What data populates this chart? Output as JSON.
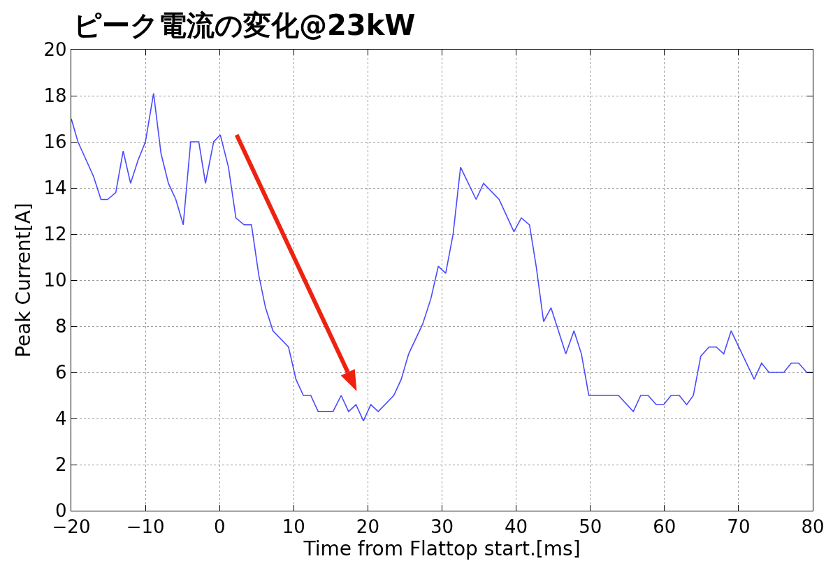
{
  "chart_data": {
    "type": "line",
    "title": "ピーク電流の変化@23kW",
    "xlabel": "Time from Flattop start.[ms]",
    "ylabel": "Peak Current[A]",
    "x": [
      -20.0,
      -19.1,
      -17.0,
      -16.0,
      -15.1,
      -14.0,
      -13.0,
      -12.0,
      -11.0,
      -10.0,
      -8.9,
      -7.9,
      -6.9,
      -5.9,
      -4.9,
      -3.9,
      -2.8,
      -1.9,
      -0.8,
      0.1,
      1.2,
      2.2,
      3.3,
      4.3,
      5.3,
      6.2,
      7.2,
      9.3,
      10.3,
      11.3,
      12.3,
      13.3,
      15.3,
      16.4,
      17.4,
      18.4,
      19.4,
      20.4,
      21.4,
      23.5,
      24.5,
      25.5,
      27.4,
      28.5,
      29.5,
      30.5,
      31.5,
      32.5,
      34.6,
      35.6,
      37.7,
      39.7,
      40.7,
      41.8,
      42.7,
      43.7,
      44.7,
      46.7,
      47.8,
      48.8,
      49.8,
      53.8,
      55.8,
      56.8,
      57.8,
      58.9,
      59.9,
      60.9,
      62.0,
      63.0,
      63.9,
      64.9,
      66.0,
      67.0,
      68.0,
      69.0,
      72.1,
      73.1,
      74.1,
      76.1,
      77.1,
      78.1,
      79.2,
      80.0
    ],
    "series": [
      {
        "color": "#4a4aff",
        "values": [
          17.0,
          16.0,
          14.5,
          13.5,
          13.5,
          13.8,
          15.6,
          14.2,
          15.2,
          16.0,
          18.1,
          15.5,
          14.2,
          13.5,
          12.4,
          16.0,
          16.0,
          14.2,
          16.0,
          16.3,
          14.9,
          12.7,
          12.4,
          12.4,
          10.2,
          8.8,
          7.8,
          7.1,
          5.7,
          5.0,
          5.0,
          4.3,
          4.3,
          5.0,
          4.3,
          4.6,
          3.9,
          4.6,
          4.3,
          5.0,
          5.7,
          6.8,
          8.1,
          9.2,
          10.6,
          10.3,
          12.0,
          14.9,
          13.5,
          14.2,
          13.5,
          12.1,
          12.7,
          12.4,
          10.6,
          8.2,
          8.8,
          6.8,
          7.8,
          6.8,
          5.0,
          5.0,
          4.3,
          5.0,
          5.0,
          4.6,
          4.6,
          5.0,
          5.0,
          4.6,
          5.0,
          6.7,
          7.1,
          7.1,
          6.8,
          7.8,
          5.7,
          6.4,
          6.0,
          6.0,
          6.4,
          6.4,
          6.0,
          6.0
        ]
      }
    ],
    "xlim": [
      -20,
      80
    ],
    "xticks": [
      {
        "value": -20,
        "label": "−20"
      },
      {
        "value": -10,
        "label": "−10"
      },
      0,
      10,
      20,
      30,
      40,
      50,
      60,
      70,
      80
    ],
    "ylim": [
      0,
      20
    ],
    "yticks": [
      0,
      2,
      4,
      6,
      8,
      10,
      12,
      14,
      16,
      18,
      20
    ],
    "grid": true,
    "marker": "none",
    "line_style": "solid"
  }
}
